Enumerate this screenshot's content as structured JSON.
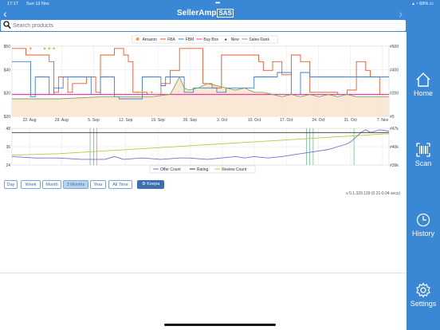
{
  "status_bar": {
    "time": "17:17",
    "date": "Sun 13 Nov",
    "battery": "69%"
  },
  "app": {
    "brand_main": "SellerAmp",
    "brand_badge": "SAS"
  },
  "search": {
    "placeholder": "Search products"
  },
  "sidebar": {
    "items": [
      {
        "label": "Home",
        "icon": "home-icon"
      },
      {
        "label": "Scan",
        "icon": "barcode-icon"
      },
      {
        "label": "History",
        "icon": "history-icon"
      },
      {
        "label": "Settings",
        "icon": "gear-icon"
      }
    ]
  },
  "colors": {
    "accent": "#3a87d6",
    "amazon": "#e8a23a",
    "fba": "#e8582a",
    "fbm": "#3a7fd6",
    "buybox": "#e040a0",
    "new": "#aaaaaa",
    "salesrank": "#7aaa5a",
    "offercount": "#7a6ad6",
    "rating": "#333333",
    "reviewcount": "#b8c840"
  },
  "chart_data": [
    {
      "type": "line",
      "x_labels": [
        "22. Aug",
        "29. Aug",
        "5. Sep",
        "12. Sep",
        "19. Sep",
        "26. Sep",
        "3. Oct",
        "10. Oct",
        "17. Oct",
        "24. Oct",
        "31. Oct",
        "7. Nov"
      ],
      "y_left_ticks": [
        "$50",
        "$40",
        "$30",
        "$20"
      ],
      "y_right_ticks": [
        "#600",
        "#400",
        "#200",
        "#0"
      ],
      "ylim": [
        20,
        52
      ],
      "legend": [
        "Amazon",
        "FBA",
        "FBM",
        "Buy Box",
        "New",
        "Sales Rank"
      ],
      "legend_position": "top",
      "grid": true,
      "series": [
        {
          "name": "FBA",
          "points": [
            [
              0,
              51
            ],
            [
              3,
              51
            ],
            [
              3,
              48
            ],
            [
              8,
              48
            ],
            [
              8,
              45
            ],
            [
              9,
              45
            ],
            [
              9,
              31
            ],
            [
              10,
              31
            ],
            [
              10,
              38
            ],
            [
              12,
              38
            ],
            [
              12,
              31
            ],
            [
              13,
              31
            ],
            [
              13,
              35
            ],
            [
              16,
              35
            ],
            [
              16,
              38
            ],
            [
              18,
              38
            ],
            [
              18,
              31
            ],
            [
              19,
              31
            ],
            [
              19,
              48
            ],
            [
              22,
              48
            ],
            [
              22,
              51
            ],
            [
              24,
              51
            ],
            [
              24,
              48
            ],
            [
              25,
              48
            ],
            [
              25,
              45
            ],
            [
              26,
              45
            ],
            [
              26,
              31
            ],
            [
              29,
              31
            ],
            [
              29,
              30
            ],
            [
              32,
              30
            ],
            [
              32,
              35
            ],
            [
              34,
              35
            ],
            [
              34,
              41
            ],
            [
              36,
              41
            ],
            [
              36,
              51
            ],
            [
              41,
              51
            ],
            [
              41,
              35
            ],
            [
              43,
              35
            ],
            [
              43,
              33
            ],
            [
              45,
              33
            ],
            [
              45,
              48
            ],
            [
              53,
              48
            ],
            [
              53,
              45
            ],
            [
              54,
              45
            ],
            [
              54,
              41
            ],
            [
              56,
              41
            ],
            [
              56,
              45
            ],
            [
              58,
              45
            ],
            [
              58,
              39
            ],
            [
              60,
              39
            ],
            [
              60,
              48
            ],
            [
              62,
              48
            ],
            [
              62,
              45
            ],
            [
              64,
              45
            ],
            [
              64,
              31
            ],
            [
              70,
              31
            ],
            [
              70,
              30
            ],
            [
              72,
              30
            ],
            [
              72,
              32
            ],
            [
              74,
              32
            ],
            [
              74,
              45
            ],
            [
              76,
              45
            ],
            [
              76,
              41
            ],
            [
              77,
              41
            ],
            [
              77,
              38
            ],
            [
              79,
              38
            ],
            [
              79,
              30
            ],
            [
              81,
              30
            ]
          ]
        },
        {
          "name": "FBM",
          "points": [
            [
              0,
              45
            ],
            [
              4,
              45
            ],
            [
              4,
              29
            ],
            [
              5,
              29
            ],
            [
              5,
              38
            ],
            [
              8,
              38
            ],
            [
              8,
              30
            ],
            [
              9,
              30
            ],
            [
              9,
              33
            ],
            [
              11,
              33
            ],
            [
              11,
              38
            ],
            [
              17,
              38
            ],
            [
              17,
              30
            ],
            [
              19,
              30
            ],
            [
              19,
              38
            ],
            [
              22,
              38
            ],
            [
              22,
              29
            ],
            [
              23,
              29
            ],
            [
              23,
              28
            ],
            [
              26,
              28
            ],
            [
              26,
              28
            ],
            [
              28,
              28
            ],
            [
              28,
              38
            ],
            [
              32,
              38
            ],
            [
              32,
              34
            ],
            [
              33,
              34
            ],
            [
              33,
              38
            ],
            [
              37,
              38
            ],
            [
              37,
              31
            ],
            [
              39,
              31
            ],
            [
              39,
              33
            ],
            [
              44,
              33
            ],
            [
              44,
              31
            ],
            [
              46,
              31
            ],
            [
              46,
              33
            ],
            [
              52,
              33
            ],
            [
              52,
              38
            ],
            [
              57,
              38
            ],
            [
              57,
              40
            ],
            [
              60,
              40
            ],
            [
              60,
              30
            ],
            [
              62,
              30
            ],
            [
              62,
              40
            ],
            [
              64,
              40
            ],
            [
              64,
              38
            ],
            [
              81,
              38
            ]
          ]
        },
        {
          "name": "Buy Box",
          "points": [
            [
              0,
              30
            ],
            [
              81,
              30
            ]
          ]
        },
        {
          "name": "Sales Rank",
          "points": [
            [
              0,
              28
            ],
            [
              10,
              28
            ],
            [
              20,
              29
            ],
            [
              30,
              29
            ],
            [
              34,
              30
            ],
            [
              35,
              34
            ],
            [
              36,
              38
            ],
            [
              37,
              33
            ],
            [
              38,
              32
            ],
            [
              40,
              33
            ],
            [
              42,
              35
            ],
            [
              44,
              34
            ],
            [
              46,
              33
            ],
            [
              48,
              32
            ],
            [
              50,
              33
            ],
            [
              52,
              31
            ],
            [
              54,
              31
            ],
            [
              56,
              30
            ],
            [
              58,
              29
            ],
            [
              60,
              30
            ],
            [
              62,
              29
            ],
            [
              64,
              30
            ],
            [
              66,
              29
            ],
            [
              68,
              30
            ],
            [
              70,
              29
            ],
            [
              72,
              30
            ],
            [
              74,
              29
            ],
            [
              76,
              29
            ],
            [
              78,
              29
            ],
            [
              81,
              29
            ]
          ]
        }
      ],
      "amazon_points": [
        [
          4,
          51
        ],
        [
          7,
          51
        ],
        [
          8,
          51
        ],
        [
          9,
          51
        ],
        [
          27,
          31
        ],
        [
          28,
          31
        ],
        [
          30,
          31
        ]
      ]
    },
    {
      "type": "line",
      "x_labels": [],
      "y_left_ticks": [
        "48",
        "36",
        "24"
      ],
      "y_right_ticks": [
        "#47k",
        "#40k",
        "#39k"
      ],
      "ylim": [
        23,
        49
      ],
      "legend": [
        "Offer Count",
        "Rating",
        "Review Count"
      ],
      "legend_position": "bottom",
      "grid": true,
      "series": [
        {
          "name": "Review Count",
          "points": [
            [
              0,
              30
            ],
            [
              10,
              31
            ],
            [
              20,
              33
            ],
            [
              30,
              35
            ],
            [
              40,
              37
            ],
            [
              50,
              39
            ],
            [
              60,
              41
            ],
            [
              70,
              43
            ],
            [
              80,
              45
            ],
            [
              81,
              45
            ]
          ]
        },
        {
          "name": "Offer Count",
          "points": [
            [
              0,
              29
            ],
            [
              5,
              28
            ],
            [
              10,
              28
            ],
            [
              15,
              27
            ],
            [
              20,
              27
            ],
            [
              22,
              29
            ],
            [
              24,
              27
            ],
            [
              28,
              28
            ],
            [
              32,
              27
            ],
            [
              36,
              28
            ],
            [
              38,
              28
            ],
            [
              42,
              27
            ],
            [
              45,
              28
            ],
            [
              48,
              29
            ],
            [
              50,
              28
            ],
            [
              52,
              29
            ],
            [
              55,
              28
            ],
            [
              58,
              29
            ],
            [
              60,
              30
            ],
            [
              62,
              31
            ],
            [
              64,
              32
            ],
            [
              66,
              33
            ],
            [
              68,
              34
            ],
            [
              70,
              36
            ],
            [
              72,
              38
            ],
            [
              73,
              40
            ],
            [
              74,
              43
            ],
            [
              75,
              46
            ],
            [
              76,
              48
            ],
            [
              77,
              46
            ],
            [
              78,
              47
            ],
            [
              79,
              48
            ],
            [
              81,
              47
            ]
          ]
        },
        {
          "name": "Rating",
          "points": [
            [
              0,
              46
            ],
            [
              81,
              46
            ]
          ]
        }
      ]
    }
  ],
  "range_buttons": {
    "day": "Day",
    "week": "Week",
    "month": "Month",
    "three_months": "3 Months",
    "year": "Year",
    "all_time": "All Time"
  },
  "keepa_button": "Keepa",
  "version_text": "v 0.1.329.139 (0.21-0.04 secs)"
}
